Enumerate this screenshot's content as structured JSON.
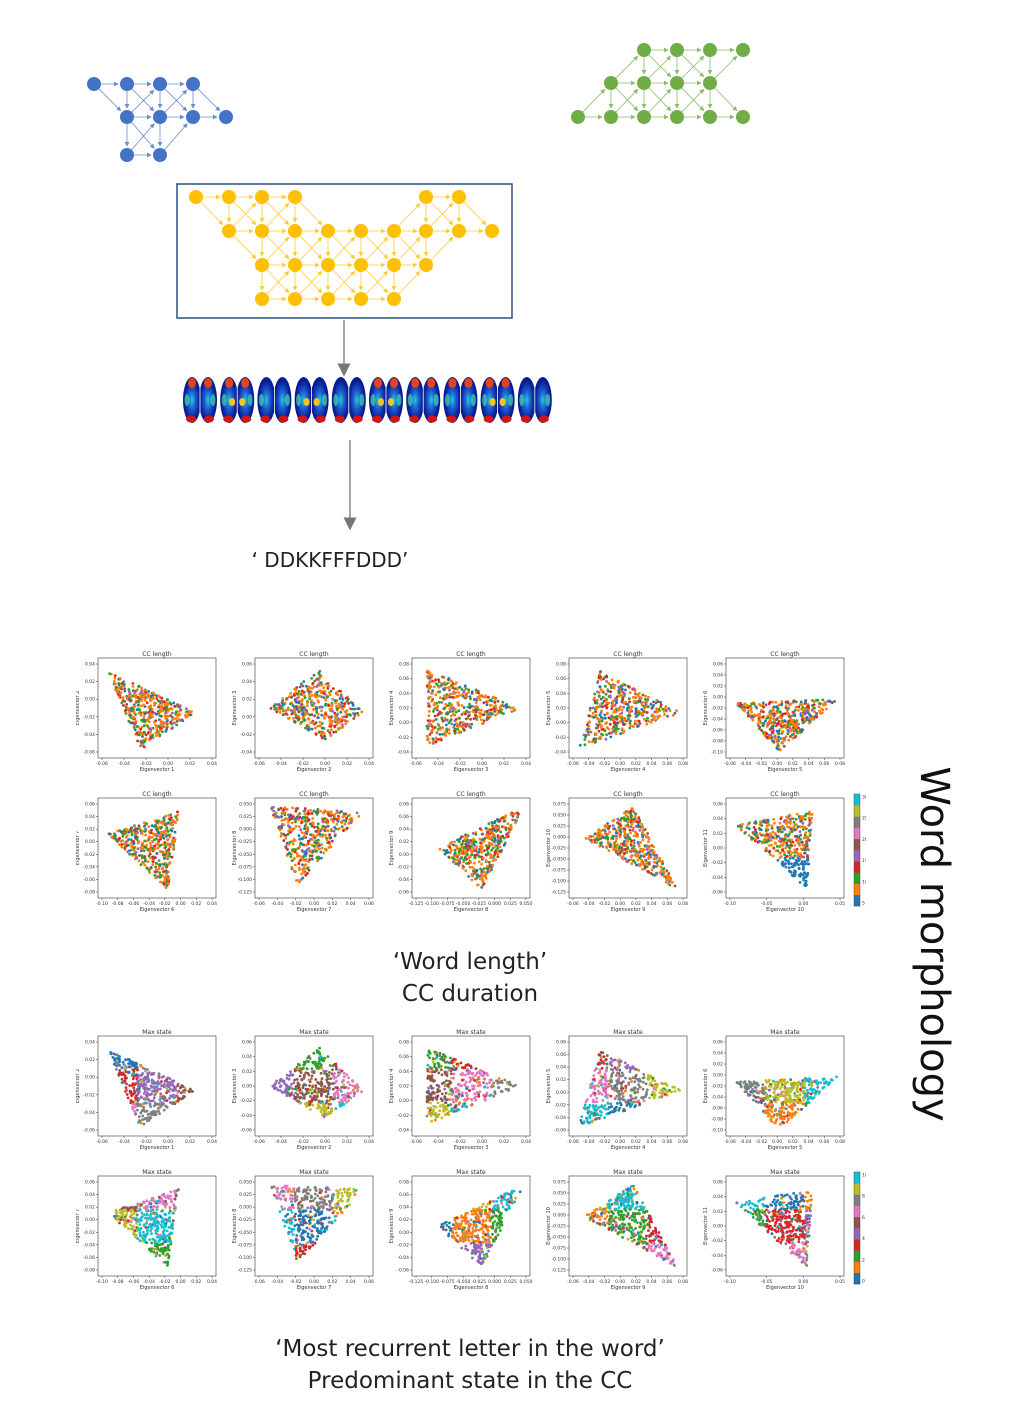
{
  "network": {
    "blue_color": "#4472c4",
    "green_color": "#70ad47",
    "yellow_color": "#ffc000",
    "box_border_color": "#2f4f7f",
    "word": "‘ DDKKFFFDDD’",
    "brain_count": 10
  },
  "side_title": "Word morphology",
  "sections": [
    {
      "caption_line1": "‘Word length’",
      "caption_line2": "CC duration",
      "colorbar_ticks": [
        "30",
        "25",
        "20",
        "15",
        "10",
        "5"
      ],
      "panels": [
        {
          "title": "CC length",
          "xlabel": "Eigenvector 1",
          "ylabel": "Eigenvector 2",
          "xticks": [
            "-0.06",
            "-0.04",
            "-0.02",
            "0.00",
            "0.02",
            "0.04"
          ],
          "yticks": [
            "0.04",
            "0.02",
            "0.00",
            "-0.02",
            "-0.04",
            "-0.06"
          ]
        },
        {
          "title": "CC length",
          "xlabel": "Eigenvector 2",
          "ylabel": "Eigenvector 3",
          "xticks": [
            "-0.06",
            "-0.04",
            "-0.02",
            "0.00",
            "0.02",
            "0.04"
          ],
          "yticks": [
            "0.06",
            "0.04",
            "0.02",
            "0.00",
            "-0.02",
            "-0.04"
          ]
        },
        {
          "title": "CC length",
          "xlabel": "Eigenvector 3",
          "ylabel": "Eigenvector 4",
          "xticks": [
            "-0.06",
            "-0.04",
            "-0.02",
            "0.00",
            "0.02",
            "0.04"
          ],
          "yticks": [
            "0.08",
            "0.06",
            "0.04",
            "0.02",
            "0.00",
            "-0.02",
            "-0.04"
          ]
        },
        {
          "title": "CC length",
          "xlabel": "Eigenvector 4",
          "ylabel": "Eigenvector 5",
          "xticks": [
            "-0.06",
            "-0.04",
            "-0.02",
            "0.00",
            "0.02",
            "0.04",
            "0.06",
            "0.08"
          ],
          "yticks": [
            "0.08",
            "0.06",
            "0.04",
            "0.02",
            "0.00",
            "-0.02",
            "-0.04"
          ]
        },
        {
          "title": "CC length",
          "xlabel": "Eigenvector 5",
          "ylabel": "Eigenvector 6",
          "xticks": [
            "-0.06",
            "-0.04",
            "-0.02",
            "0.00",
            "0.02",
            "0.04",
            "0.06",
            "0.08"
          ],
          "yticks": [
            "0.06",
            "0.04",
            "0.02",
            "0.00",
            "-0.02",
            "-0.04",
            "-0.06",
            "-0.08",
            "-0.10"
          ]
        },
        {
          "title": "CC length",
          "xlabel": "Eigenvector 6",
          "ylabel": "Eigenvector 7",
          "xticks": [
            "-0.10",
            "-0.08",
            "-0.06",
            "-0.04",
            "-0.02",
            "0.00",
            "0.02",
            "0.04"
          ],
          "yticks": [
            "0.06",
            "0.04",
            "0.02",
            "0.00",
            "-0.02",
            "-0.04",
            "-0.06",
            "-0.08"
          ]
        },
        {
          "title": "CC length",
          "xlabel": "Eigenvector 7",
          "ylabel": "Eigenvector 8",
          "xticks": [
            "-0.06",
            "-0.04",
            "-0.02",
            "0.00",
            "0.02",
            "0.04",
            "0.06"
          ],
          "yticks": [
            "0.050",
            "0.025",
            "0.000",
            "-0.025",
            "-0.050",
            "-0.075",
            "-0.100",
            "-0.125"
          ]
        },
        {
          "title": "CC length",
          "xlabel": "Eigenvector 8",
          "ylabel": "Eigenvector 9",
          "xticks": [
            "-0.125",
            "-0.100",
            "-0.075",
            "-0.050",
            "-0.025",
            "0.000",
            "0.025",
            "0.050"
          ],
          "yticks": [
            "0.08",
            "0.06",
            "0.04",
            "0.02",
            "0.00",
            "-0.02",
            "-0.04",
            "-0.06"
          ]
        },
        {
          "title": "CC length",
          "xlabel": "Eigenvector 9",
          "ylabel": "Eigenvector 10",
          "xticks": [
            "-0.06",
            "-0.04",
            "-0.02",
            "0.00",
            "0.02",
            "0.04",
            "0.06",
            "0.08"
          ],
          "yticks": [
            "0.075",
            "0.050",
            "0.025",
            "0.000",
            "-0.025",
            "-0.050",
            "-0.075",
            "-0.100",
            "-0.125"
          ]
        },
        {
          "title": "CC length",
          "xlabel": "Eigenvector 10",
          "ylabel": "Eigenvector 11",
          "xticks": [
            "-0.10",
            "-0.05",
            "0.00",
            "0.05"
          ],
          "yticks": [
            "0.06",
            "0.04",
            "0.02",
            "0.00",
            "-0.02",
            "-0.04",
            "-0.06"
          ]
        }
      ]
    },
    {
      "caption_line1": "‘Most recurrent letter in the word’",
      "caption_line2": "Predominant state in the CC",
      "colorbar_ticks": [
        "10",
        "8",
        "6",
        "4",
        "2",
        "0"
      ],
      "panels": [
        {
          "title": "Max state",
          "xlabel": "Eigenvector 1",
          "ylabel": "Eigenvector 2",
          "xticks": [
            "-0.06",
            "-0.04",
            "-0.02",
            "0.00",
            "0.02",
            "0.04"
          ],
          "yticks": [
            "0.04",
            "0.02",
            "0.00",
            "-0.02",
            "-0.04",
            "-0.06"
          ]
        },
        {
          "title": "Max state",
          "xlabel": "Eigenvector 2",
          "ylabel": "Eigenvector 3",
          "xticks": [
            "-0.06",
            "-0.04",
            "-0.02",
            "0.00",
            "0.02",
            "0.04"
          ],
          "yticks": [
            "0.06",
            "0.04",
            "0.02",
            "0.00",
            "-0.02",
            "-0.04",
            "-0.06"
          ]
        },
        {
          "title": "Max state",
          "xlabel": "Eigenvector 3",
          "ylabel": "Eigenvector 4",
          "xticks": [
            "-0.06",
            "-0.04",
            "-0.02",
            "0.00",
            "0.02",
            "0.04"
          ],
          "yticks": [
            "0.08",
            "0.06",
            "0.04",
            "0.02",
            "0.00",
            "-0.02",
            "-0.04"
          ]
        },
        {
          "title": "Max state",
          "xlabel": "Eigenvector 4",
          "ylabel": "Eigenvector 5",
          "xticks": [
            "-0.06",
            "-0.04",
            "-0.02",
            "0.00",
            "0.02",
            "0.04",
            "0.06",
            "0.08"
          ],
          "yticks": [
            "0.08",
            "0.06",
            "0.04",
            "0.02",
            "0.00",
            "-0.02",
            "-0.04",
            "-0.06"
          ]
        },
        {
          "title": "Max state",
          "xlabel": "Eigenvector 5",
          "ylabel": "Eigenvector 6",
          "xticks": [
            "-0.06",
            "-0.04",
            "-0.02",
            "0.00",
            "0.02",
            "0.04",
            "0.06",
            "0.08"
          ],
          "yticks": [
            "0.06",
            "0.04",
            "0.02",
            "0.00",
            "-0.02",
            "-0.04",
            "-0.06",
            "-0.08",
            "-0.10"
          ]
        },
        {
          "title": "Max state",
          "xlabel": "Eigenvector 6",
          "ylabel": "Eigenvector 7",
          "xticks": [
            "-0.10",
            "-0.08",
            "-0.06",
            "-0.04",
            "-0.02",
            "0.00",
            "0.02",
            "0.04"
          ],
          "yticks": [
            "0.06",
            "0.04",
            "0.02",
            "0.00",
            "-0.02",
            "-0.04",
            "-0.06",
            "-0.08"
          ]
        },
        {
          "title": "Max state",
          "xlabel": "Eigenvector 7",
          "ylabel": "Eigenvector 8",
          "xticks": [
            "-0.06",
            "-0.04",
            "-0.02",
            "0.00",
            "0.02",
            "0.04",
            "0.06"
          ],
          "yticks": [
            "0.050",
            "0.025",
            "0.000",
            "-0.025",
            "-0.050",
            "-0.075",
            "-0.100",
            "-0.125"
          ]
        },
        {
          "title": "Max state",
          "xlabel": "Eigenvector 8",
          "ylabel": "Eigenvector 9",
          "xticks": [
            "-0.125",
            "-0.100",
            "-0.075",
            "-0.050",
            "-0.025",
            "0.000",
            "0.025",
            "0.050"
          ],
          "yticks": [
            "0.08",
            "0.06",
            "0.04",
            "0.02",
            "0.00",
            "-0.02",
            "-0.04",
            "-0.06"
          ]
        },
        {
          "title": "Max state",
          "xlabel": "Eigenvector 9",
          "ylabel": "Eigenvector 10",
          "xticks": [
            "-0.06",
            "-0.04",
            "-0.02",
            "0.00",
            "0.02",
            "0.04",
            "0.06",
            "0.08"
          ],
          "yticks": [
            "0.075",
            "0.050",
            "0.025",
            "0.000",
            "-0.025",
            "-0.050",
            "-0.075",
            "-0.100",
            "-0.125"
          ]
        },
        {
          "title": "Max state",
          "xlabel": "Eigenvector 10",
          "ylabel": "Eigenvector 11",
          "xticks": [
            "-0.10",
            "-0.05",
            "0.00",
            "0.05"
          ],
          "yticks": [
            "0.06",
            "0.04",
            "0.02",
            "0.00",
            "-0.02",
            "-0.04",
            "-0.06"
          ]
        }
      ]
    }
  ]
}
